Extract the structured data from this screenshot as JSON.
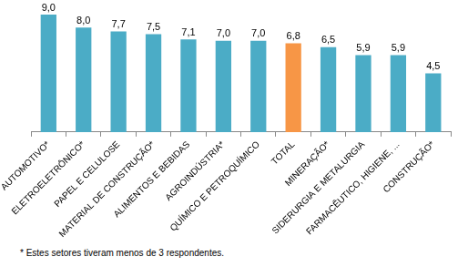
{
  "chart_data": {
    "type": "bar",
    "categories": [
      "AUTOMOTIVO*",
      "ELETROELETRÔNICO*",
      "PAPEL E CELULOSE",
      "MATERIAL DE CONSTRUÇÃO*",
      "ALIMENTOS E BEBIDAS",
      "AGROINDÚSTRIA*",
      "QUÍMICO E PETROQUÍMICO",
      "TOTAL",
      "MINERAÇÃO*",
      "SIDERURGIA E METALURGIA",
      "FARMACÊUTICO, HIGIENE, ...",
      "CONSTRUÇÃO*"
    ],
    "values": [
      9.0,
      8.0,
      7.7,
      7.5,
      7.1,
      7.0,
      7.0,
      6.8,
      6.5,
      5.9,
      5.9,
      4.5
    ],
    "value_labels": [
      "9,0",
      "8,0",
      "7,7",
      "7,5",
      "7,1",
      "7,0",
      "7,0",
      "6,8",
      "6,5",
      "5,9",
      "5,9",
      "4,5"
    ],
    "colors": [
      "#4bacc6",
      "#4bacc6",
      "#4bacc6",
      "#4bacc6",
      "#4bacc6",
      "#4bacc6",
      "#4bacc6",
      "#f79646",
      "#4bacc6",
      "#4bacc6",
      "#4bacc6",
      "#4bacc6"
    ],
    "ylim": [
      0,
      9
    ],
    "data_labels": true,
    "tick_labels": "x",
    "grid": false,
    "footnote": "* Estes setores tiveram menos de 3 respondentes."
  }
}
